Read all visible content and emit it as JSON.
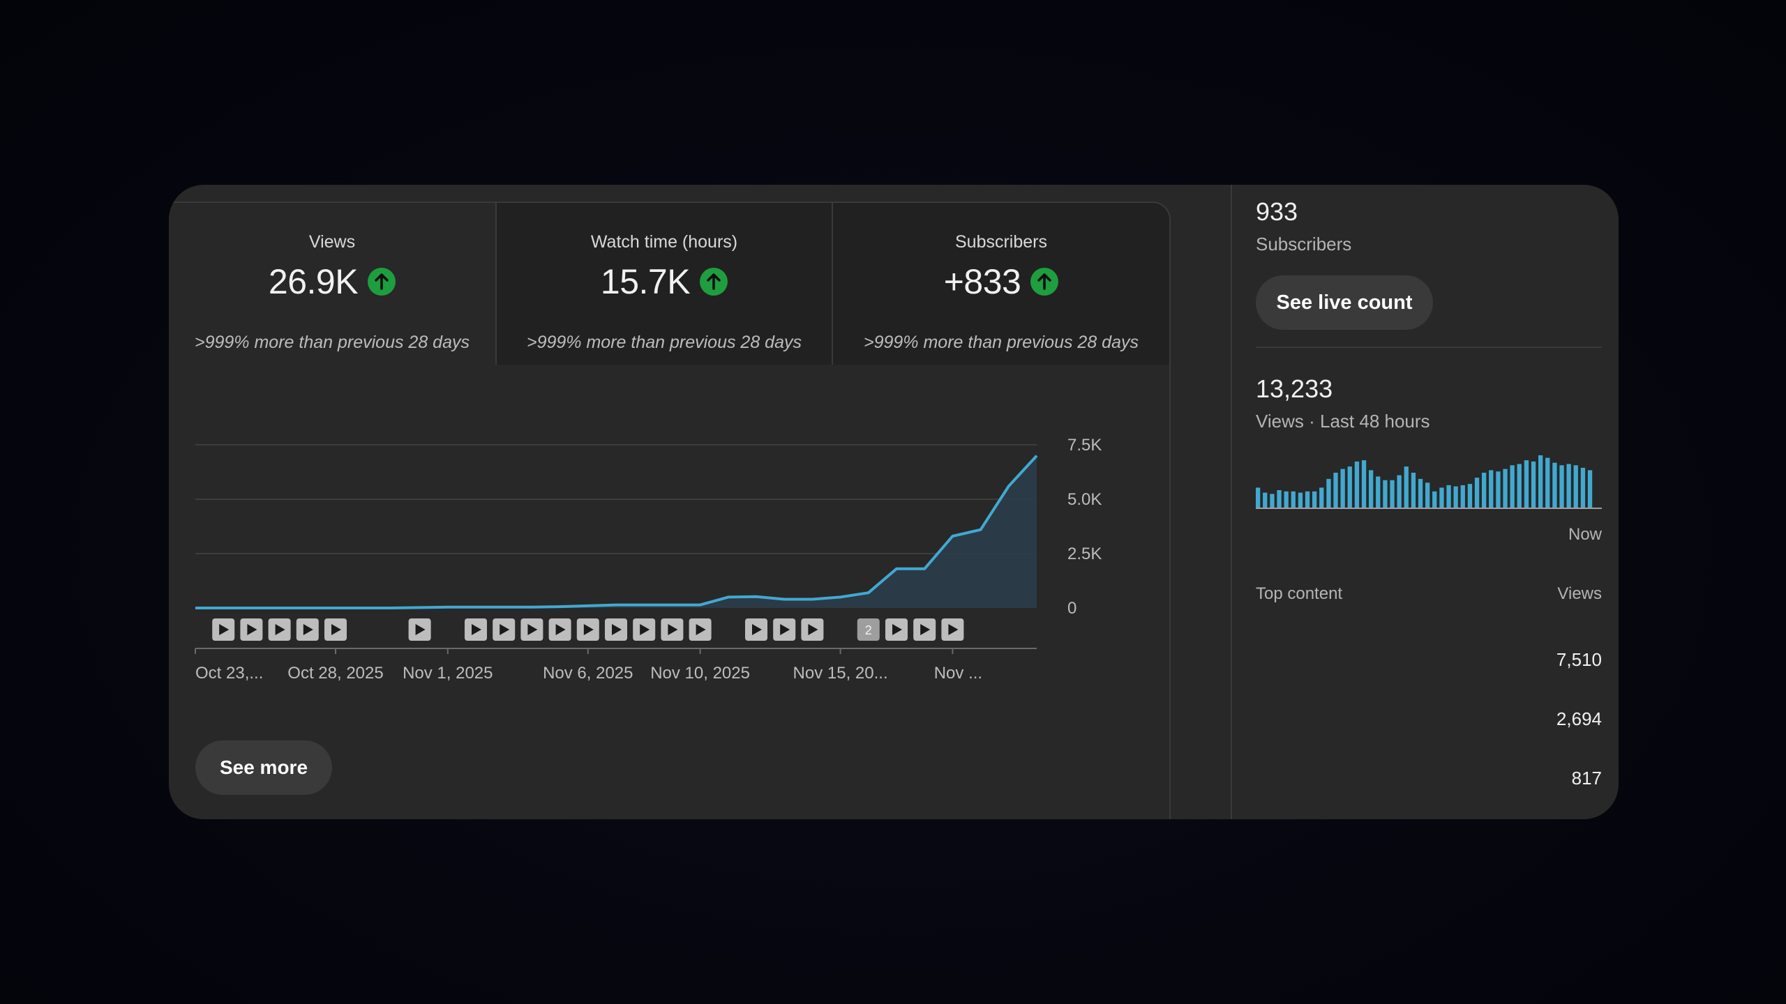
{
  "metrics": [
    {
      "label": "Views",
      "value": "26.9K",
      "comparison": ">999% more than previous 28 days",
      "trend_icon": "arrow-up-icon"
    },
    {
      "label": "Watch time (hours)",
      "value": "15.7K",
      "comparison": ">999% more than previous 28 days",
      "trend_icon": "arrow-up-icon"
    },
    {
      "label": "Subscribers",
      "value": "+833",
      "comparison": ">999% more than previous 28 days",
      "trend_icon": "arrow-up-icon"
    }
  ],
  "colors": {
    "trend_up": "#1e9e3e",
    "chart_line": "#41a9d0",
    "bars": "#41a9d0"
  },
  "chart_data": {
    "type": "area",
    "x_tick_labels": [
      "Oct 23,...",
      "Oct 28, 2025",
      "Nov 1, 2025",
      "Nov 6, 2025",
      "Nov 10, 2025",
      "Nov 15, 20...",
      "Nov ..."
    ],
    "y_ticks": [
      "0",
      "2.5K",
      "5.0K",
      "7.5K"
    ],
    "ylim": [
      0,
      7500
    ],
    "series": [
      {
        "values": [
          0,
          0,
          0,
          0,
          0,
          0,
          0,
          0,
          20,
          40,
          40,
          40,
          40,
          60,
          100,
          140,
          140,
          140,
          140,
          500,
          520,
          400,
          400,
          500,
          700,
          1800,
          1800,
          3300,
          3600,
          5600,
          7000
        ]
      }
    ],
    "video_markers": [
      1,
      2,
      3,
      4,
      5,
      8,
      10,
      11,
      12,
      13,
      14,
      15,
      16,
      17,
      18,
      20,
      21,
      22,
      24,
      25,
      26,
      27
    ],
    "grouped_marker": {
      "index": 24,
      "count": "2"
    }
  },
  "see_more_label": "See more",
  "realtime": {
    "subscribers_count": "933",
    "subscribers_label": "Subscribers",
    "live_count_button": "See live count",
    "views_count": "13,233",
    "views_label": "Views · Last 48 hours",
    "now_label": "Now",
    "hourly_views": [
      16,
      12,
      11,
      14,
      13,
      13,
      12,
      13,
      13,
      16,
      23,
      28,
      31,
      33,
      37,
      38,
      30,
      25,
      22,
      22,
      26,
      33,
      28,
      23,
      20,
      13,
      16,
      18,
      17,
      18,
      19,
      24,
      28,
      30,
      29,
      31,
      34,
      35,
      38,
      37,
      42,
      40,
      36,
      34,
      35,
      34,
      32,
      30
    ]
  },
  "top_content": {
    "header_label": "Top content",
    "views_header": "Views",
    "rows": [
      {
        "views": "7,510"
      },
      {
        "views": "2,694"
      },
      {
        "views": "817"
      }
    ]
  }
}
